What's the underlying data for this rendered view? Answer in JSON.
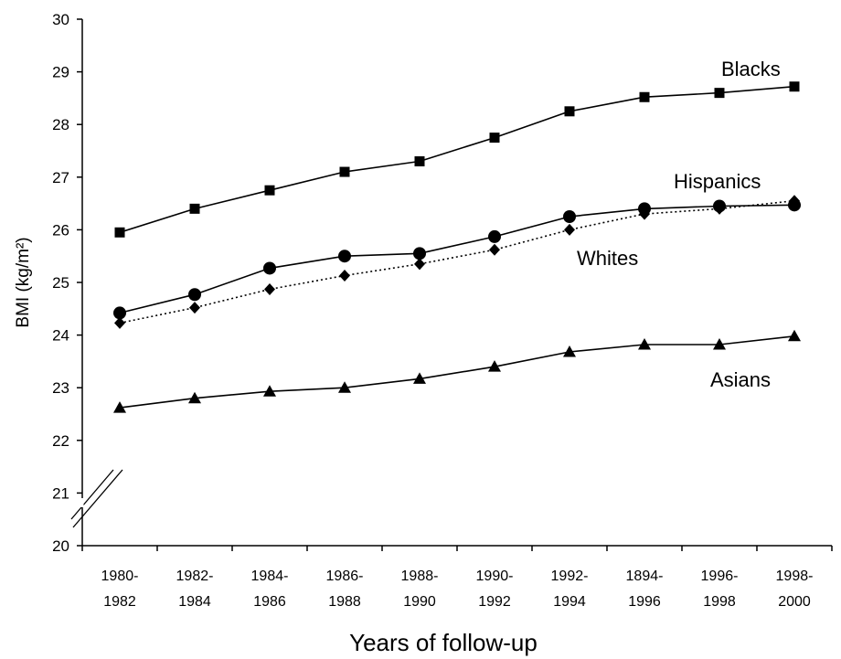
{
  "chart_data": {
    "type": "line",
    "xlabel": "Years of follow-up",
    "ylabel": "BMI (kg/m²)",
    "ylim": [
      20,
      30
    ],
    "yticks": [
      "20",
      "21",
      "22",
      "23",
      "24",
      "25",
      "26",
      "27",
      "28",
      "29",
      "30"
    ],
    "categories": [
      [
        "1980-",
        "1982"
      ],
      [
        "1982-",
        "1984"
      ],
      [
        "1984-",
        "1986"
      ],
      [
        "1986-",
        "1988"
      ],
      [
        "1988-",
        "1990"
      ],
      [
        "1990-",
        "1992"
      ],
      [
        "1992-",
        "1994"
      ],
      [
        "1894-",
        "1996"
      ],
      [
        "1996-",
        "1998"
      ],
      [
        "1998-",
        "2000"
      ]
    ],
    "axis_break": true,
    "grid": false,
    "legend": "inline labels",
    "series": [
      {
        "name": "Blacks",
        "marker": "square",
        "line": "solid",
        "values": [
          25.95,
          26.4,
          26.75,
          27.1,
          27.3,
          27.75,
          28.25,
          28.52,
          28.6,
          28.72
        ]
      },
      {
        "name": "Hispanics",
        "marker": "circle",
        "line": "solid",
        "values": [
          24.42,
          24.77,
          25.27,
          25.5,
          25.55,
          25.87,
          26.25,
          26.4,
          26.45,
          26.47
        ]
      },
      {
        "name": "Whites",
        "marker": "diamond",
        "line": "dotted",
        "values": [
          24.23,
          24.52,
          24.87,
          25.13,
          25.35,
          25.62,
          26.0,
          26.3,
          26.4,
          26.55
        ]
      },
      {
        "name": "Asians",
        "marker": "triangle",
        "line": "solid",
        "values": [
          22.62,
          22.8,
          22.93,
          23.0,
          23.17,
          23.4,
          23.68,
          23.82,
          23.82,
          23.98
        ]
      }
    ]
  }
}
